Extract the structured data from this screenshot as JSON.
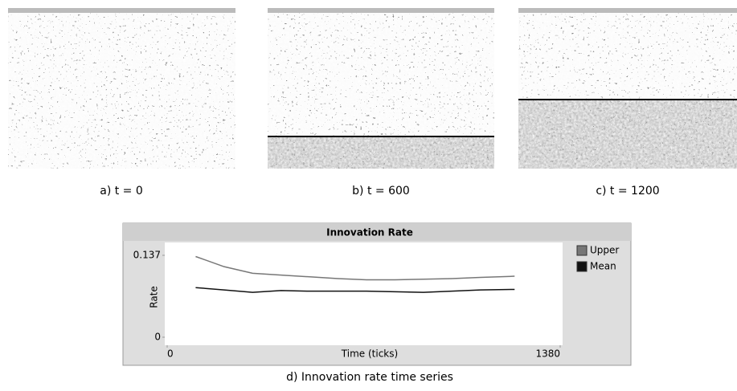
{
  "captions": [
    "a) t = 0",
    "b) t = 600",
    "c) t = 1200",
    "d) Innovation rate time series"
  ],
  "chart_data": {
    "type": "line",
    "title": "Innovation Rate",
    "x_label": "Time (ticks)",
    "y_label": "Rate",
    "x": [
      100,
      200,
      300,
      400,
      500,
      600,
      700,
      800,
      900,
      1000,
      1100,
      1220
    ],
    "series": [
      {
        "name": "Upper",
        "color": "#777777",
        "values": [
          0.135,
          0.118,
          0.107,
          0.104,
          0.101,
          0.098,
          0.096,
          0.096,
          0.097,
          0.098,
          0.1,
          0.102
        ]
      },
      {
        "name": "Mean",
        "color": "#111111",
        "values": [
          0.083,
          0.079,
          0.075,
          0.078,
          0.077,
          0.077,
          0.077,
          0.076,
          0.075,
          0.077,
          0.079,
          0.08
        ]
      }
    ],
    "xlim": [
      0,
      1380
    ],
    "ylim": [
      0,
      0.137
    ],
    "xticks": [
      0,
      1380
    ],
    "yticks": [
      0,
      0.137
    ],
    "grid": false
  }
}
